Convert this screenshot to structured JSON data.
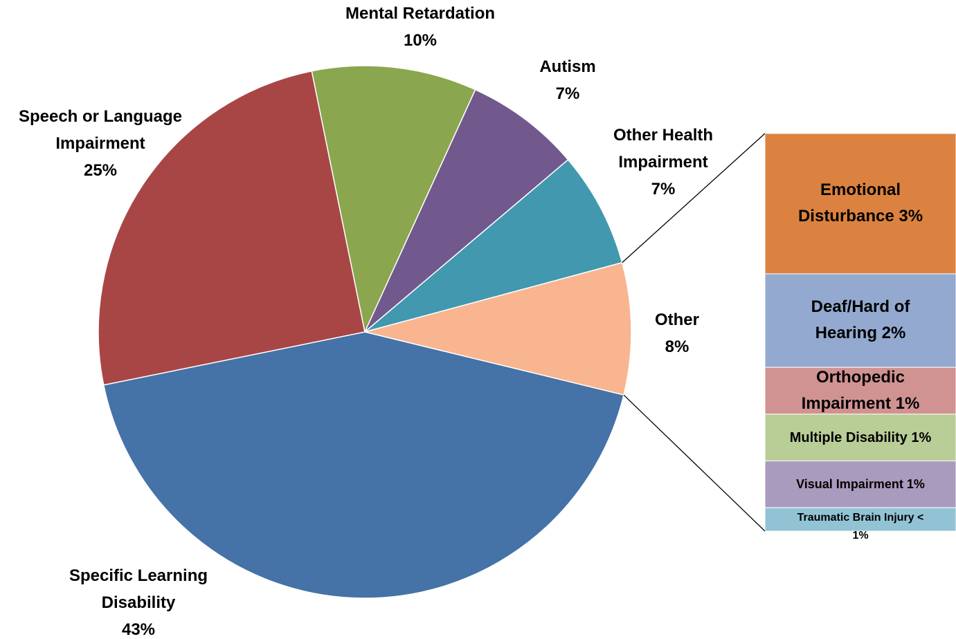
{
  "chart_data": {
    "type": "bar-of-pie",
    "categories": [
      "Mental Retardation",
      "Autism",
      "Other Health Impairment",
      "Other",
      "Specific Learning Disability",
      "Speech or Language Impairment"
    ],
    "values": [
      10,
      7,
      7,
      8,
      43,
      25
    ],
    "value_labels": [
      "10%",
      "7%",
      "7%",
      "8%",
      "43%",
      "25%"
    ],
    "colors": [
      "#8aa64e",
      "#71598e",
      "#4198af",
      "#f8b58f",
      "#4572a7",
      "#a84646"
    ],
    "breakdown": {
      "categories": [
        "Emotional Disturbance",
        "Deaf/Hard of Hearing",
        "Orthopedic Impairment",
        "Multiple Disability",
        "Visual Impairment",
        "Traumatic Brain Injury"
      ],
      "values": [
        3,
        2,
        1,
        1,
        1,
        0.5
      ],
      "value_labels": [
        "3%",
        "2%",
        "1%",
        "1%",
        "1%",
        "< 1%"
      ],
      "colors": [
        "#db8240",
        "#93a9cf",
        "#d19392",
        "#b9cd96",
        "#a99bbd",
        "#92c3d5"
      ]
    }
  }
}
